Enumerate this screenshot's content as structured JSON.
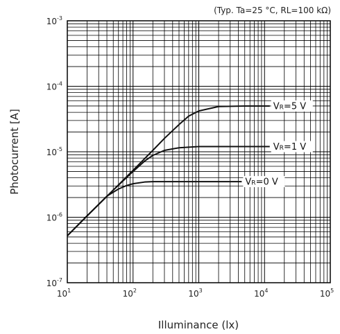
{
  "chart_data": {
    "type": "line",
    "title": "",
    "note": "(Typ. Ta=25 °C, RL=100 kΩ)",
    "xlabel": "Illuminance (lx)",
    "ylabel": "Photocurrent [A]",
    "x_scale": "log",
    "y_scale": "log",
    "xlim": [
      10,
      100000
    ],
    "ylim": [
      1e-07,
      0.001
    ],
    "grid": true,
    "x_ticks": [
      {
        "base": "10",
        "exp": "1"
      },
      {
        "base": "10",
        "exp": "2"
      },
      {
        "base": "10",
        "exp": "3"
      },
      {
        "base": "10",
        "exp": "4"
      },
      {
        "base": "10",
        "exp": "5"
      }
    ],
    "y_ticks": [
      {
        "base": "10",
        "exp": "-3"
      },
      {
        "base": "10",
        "exp": "-4"
      },
      {
        "base": "10",
        "exp": "-5"
      },
      {
        "base": "10",
        "exp": "-6"
      },
      {
        "base": "10",
        "exp": "-7"
      }
    ],
    "series": [
      {
        "label_main": "V",
        "label_sub": "R",
        "label_rest": "=5 V",
        "x": [
          10,
          20,
          50,
          100,
          200,
          300,
          500,
          700,
          1000,
          2000,
          5000,
          12000
        ],
        "y": [
          5.2e-07,
          1.05e-06,
          2.6e-06,
          5.2e-06,
          1.05e-05,
          1.6e-05,
          2.6e-05,
          3.5e-05,
          4.2e-05,
          4.9e-05,
          5e-05,
          5e-05
        ]
      },
      {
        "label_main": "V",
        "label_sub": "R",
        "label_rest": "=1 V",
        "x": [
          10,
          20,
          50,
          100,
          150,
          200,
          300,
          500,
          1000,
          2000,
          5000,
          12000
        ],
        "y": [
          5.2e-07,
          1.05e-06,
          2.6e-06,
          5e-06,
          7.2e-06,
          8.8e-06,
          1.05e-05,
          1.15e-05,
          1.2e-05,
          1.2e-05,
          1.2e-05,
          1.2e-05
        ]
      },
      {
        "label_main": "V",
        "label_sub": "R",
        "label_rest": "=0 V",
        "x": [
          10,
          20,
          40,
          60,
          80,
          100,
          150,
          200,
          500,
          1000,
          2000,
          4500
        ],
        "y": [
          5.2e-07,
          1.05e-06,
          2.1e-06,
          2.7e-06,
          3.05e-06,
          3.25e-06,
          3.45e-06,
          3.5e-06,
          3.5e-06,
          3.5e-06,
          3.5e-06,
          3.5e-06
        ]
      }
    ]
  }
}
